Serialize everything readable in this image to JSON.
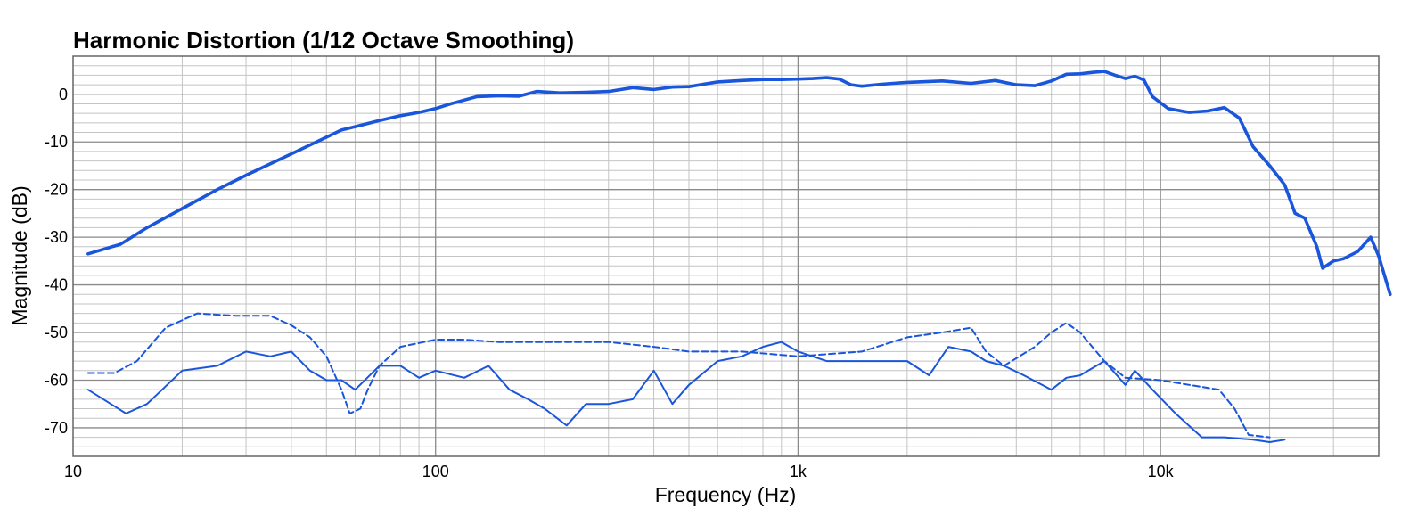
{
  "chart_data": {
    "type": "line",
    "title": "Harmonic Distortion (1/12 Octave Smoothing)",
    "xlabel": "Frequency (Hz)",
    "ylabel": "Magnitude (dB)",
    "xscale": "log",
    "xlim": [
      10,
      40000
    ],
    "ylim": [
      -76,
      8
    ],
    "x_ticks": [
      10,
      100,
      1000,
      10000
    ],
    "x_tick_labels": [
      "10",
      "100",
      "1k",
      "10k"
    ],
    "y_ticks": [
      0,
      -10,
      -20,
      -30,
      -40,
      -50,
      -60,
      -70
    ],
    "y_tick_labels": [
      "0",
      "-10",
      "-20",
      "-30",
      "-40",
      "-50",
      "-60",
      "-70"
    ],
    "grid": true,
    "line_color": "#1a56db",
    "series": [
      {
        "style": "solid-thick",
        "points": [
          [
            11,
            -33.5
          ],
          [
            13.5,
            -31.5
          ],
          [
            16,
            -28
          ],
          [
            20,
            -24
          ],
          [
            25,
            -20
          ],
          [
            30,
            -17
          ],
          [
            40,
            -12.5
          ],
          [
            50,
            -9
          ],
          [
            55,
            -7.5
          ],
          [
            60,
            -6.8
          ],
          [
            70,
            -5.5
          ],
          [
            80,
            -4.5
          ],
          [
            90,
            -3.8
          ],
          [
            100,
            -3
          ],
          [
            110,
            -2
          ],
          [
            130,
            -0.5
          ],
          [
            150,
            -0.3
          ],
          [
            170,
            -0.4
          ],
          [
            190,
            0.6
          ],
          [
            220,
            0.3
          ],
          [
            260,
            0.4
          ],
          [
            300,
            0.6
          ],
          [
            350,
            1.4
          ],
          [
            400,
            1
          ],
          [
            450,
            1.5
          ],
          [
            500,
            1.6
          ],
          [
            600,
            2.6
          ],
          [
            700,
            2.9
          ],
          [
            800,
            3.1
          ],
          [
            900,
            3.1
          ],
          [
            1000,
            3.2
          ],
          [
            1100,
            3.3
          ],
          [
            1200,
            3.5
          ],
          [
            1300,
            3.2
          ],
          [
            1400,
            2
          ],
          [
            1500,
            1.7
          ],
          [
            1700,
            2.1
          ],
          [
            2000,
            2.5
          ],
          [
            2500,
            2.8
          ],
          [
            3000,
            2.3
          ],
          [
            3500,
            2.9
          ],
          [
            4000,
            2
          ],
          [
            4500,
            1.8
          ],
          [
            5000,
            2.8
          ],
          [
            5500,
            4.2
          ],
          [
            6000,
            4.3
          ],
          [
            6500,
            4.6
          ],
          [
            7000,
            4.8
          ],
          [
            7500,
            4
          ],
          [
            8000,
            3.3
          ],
          [
            8500,
            3.8
          ],
          [
            9000,
            3
          ],
          [
            9500,
            -0.5
          ],
          [
            10500,
            -3
          ],
          [
            12000,
            -3.8
          ],
          [
            13500,
            -3.5
          ],
          [
            15000,
            -2.8
          ],
          [
            16500,
            -5
          ],
          [
            18000,
            -11
          ],
          [
            20000,
            -15
          ],
          [
            22000,
            -19
          ],
          [
            23500,
            -25
          ],
          [
            25000,
            -26
          ],
          [
            27000,
            -32
          ],
          [
            28000,
            -36.5
          ],
          [
            30000,
            -35
          ],
          [
            32000,
            -34.5
          ],
          [
            35000,
            -33
          ],
          [
            38000,
            -30
          ],
          [
            40000,
            -34
          ],
          [
            43000,
            -42
          ]
        ]
      },
      {
        "style": "dashed",
        "points": [
          [
            11,
            -58.5
          ],
          [
            13,
            -58.5
          ],
          [
            15,
            -56
          ],
          [
            18,
            -49
          ],
          [
            22,
            -46
          ],
          [
            28,
            -46.5
          ],
          [
            35,
            -46.5
          ],
          [
            40,
            -48.5
          ],
          [
            45,
            -51
          ],
          [
            50,
            -55
          ],
          [
            55,
            -62
          ],
          [
            58,
            -67
          ],
          [
            62,
            -66
          ],
          [
            65,
            -62
          ],
          [
            70,
            -57
          ],
          [
            80,
            -53
          ],
          [
            100,
            -51.5
          ],
          [
            120,
            -51.5
          ],
          [
            150,
            -52
          ],
          [
            200,
            -52
          ],
          [
            300,
            -52
          ],
          [
            400,
            -53
          ],
          [
            500,
            -54
          ],
          [
            700,
            -54
          ],
          [
            1000,
            -55
          ],
          [
            1500,
            -54
          ],
          [
            2000,
            -51
          ],
          [
            2500,
            -50
          ],
          [
            3000,
            -49
          ],
          [
            3300,
            -54
          ],
          [
            3700,
            -57
          ],
          [
            4500,
            -53
          ],
          [
            5000,
            -50
          ],
          [
            5500,
            -48
          ],
          [
            6000,
            -50
          ],
          [
            7000,
            -56
          ],
          [
            8000,
            -59.5
          ],
          [
            10000,
            -60
          ],
          [
            12000,
            -61
          ],
          [
            14500,
            -62
          ],
          [
            16000,
            -66
          ],
          [
            17500,
            -71.5
          ],
          [
            20000,
            -72
          ]
        ]
      },
      {
        "style": "solid-thin",
        "points": [
          [
            11,
            -62
          ],
          [
            14,
            -67
          ],
          [
            16,
            -65
          ],
          [
            20,
            -58
          ],
          [
            25,
            -57
          ],
          [
            30,
            -54
          ],
          [
            35,
            -55
          ],
          [
            40,
            -54
          ],
          [
            45,
            -58
          ],
          [
            50,
            -60
          ],
          [
            55,
            -60
          ],
          [
            60,
            -62
          ],
          [
            70,
            -57
          ],
          [
            80,
            -57
          ],
          [
            90,
            -59.5
          ],
          [
            100,
            -58
          ],
          [
            120,
            -59.5
          ],
          [
            140,
            -57
          ],
          [
            160,
            -62
          ],
          [
            180,
            -64
          ],
          [
            200,
            -66
          ],
          [
            230,
            -69.5
          ],
          [
            260,
            -65
          ],
          [
            300,
            -65
          ],
          [
            350,
            -64
          ],
          [
            400,
            -58
          ],
          [
            450,
            -65
          ],
          [
            500,
            -61
          ],
          [
            600,
            -56
          ],
          [
            700,
            -55
          ],
          [
            800,
            -53
          ],
          [
            900,
            -52
          ],
          [
            1000,
            -54
          ],
          [
            1200,
            -56
          ],
          [
            1500,
            -56
          ],
          [
            2000,
            -56
          ],
          [
            2300,
            -59
          ],
          [
            2600,
            -53
          ],
          [
            3000,
            -54
          ],
          [
            3300,
            -56
          ],
          [
            3700,
            -57
          ],
          [
            4200,
            -59
          ],
          [
            5000,
            -62
          ],
          [
            5500,
            -59.5
          ],
          [
            6000,
            -59
          ],
          [
            7000,
            -56
          ],
          [
            8000,
            -61
          ],
          [
            8500,
            -58
          ],
          [
            9500,
            -62
          ],
          [
            11000,
            -67
          ],
          [
            13000,
            -72
          ],
          [
            15000,
            -72
          ],
          [
            18000,
            -72.5
          ],
          [
            20000,
            -73
          ],
          [
            22000,
            -72.5
          ]
        ]
      }
    ]
  }
}
